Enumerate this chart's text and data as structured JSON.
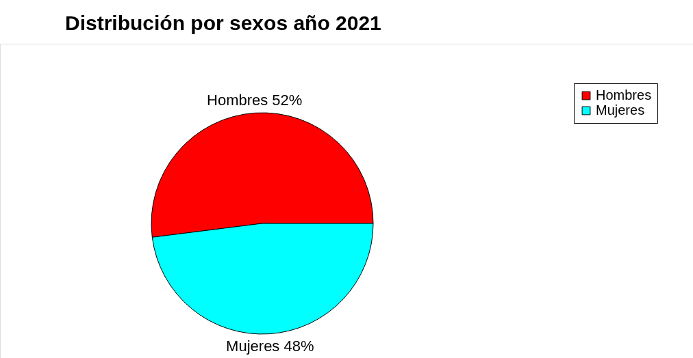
{
  "chart_data": {
    "type": "pie",
    "title": "Distribución por sexos año 2021",
    "categories": [
      "Hombres",
      "Mujeres"
    ],
    "values": [
      52,
      48
    ],
    "colors": [
      "#ff0000",
      "#00ffff"
    ],
    "value_labels": [
      "Hombres 52%",
      "Mujeres 48%"
    ],
    "legend": "top right"
  }
}
